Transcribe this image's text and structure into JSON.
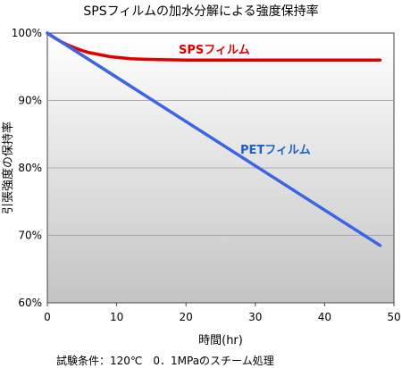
{
  "chart_data": {
    "type": "line",
    "title": "SPSフィルムの加水分解による強度保持率",
    "xlabel": "時間(hr)",
    "ylabel": "引張強度の保持率",
    "xlim": [
      0,
      50
    ],
    "ylim": [
      60,
      100
    ],
    "xticks": [
      0,
      10,
      20,
      30,
      40,
      50
    ],
    "xtick_labels": [
      "0",
      "10",
      "20",
      "30",
      "40",
      "50"
    ],
    "yticks": [
      60,
      70,
      80,
      90,
      100
    ],
    "ytick_labels": [
      "60%",
      "70%",
      "80%",
      "90%",
      "100%"
    ],
    "grid": "horizontal",
    "footnote": "試験条件：120℃　0．1MPaのスチーム処理",
    "series": [
      {
        "name": "SPSフィルム",
        "color": "#e00000",
        "x": [
          0,
          1,
          2,
          3,
          4,
          5,
          6,
          7,
          8,
          9,
          10,
          12,
          14,
          16,
          20,
          25,
          30,
          35,
          40,
          45,
          48
        ],
        "y": [
          100,
          99.3,
          98.7,
          98.2,
          97.8,
          97.4,
          97.1,
          96.9,
          96.7,
          96.5,
          96.4,
          96.2,
          96.1,
          96.05,
          96.0,
          96.0,
          96.0,
          96.0,
          96.0,
          96.0,
          96.0
        ]
      },
      {
        "name": "PETフィルム",
        "color": "#3c64e6",
        "x": [
          0,
          48
        ],
        "y": [
          100,
          68.5
        ]
      }
    ]
  }
}
